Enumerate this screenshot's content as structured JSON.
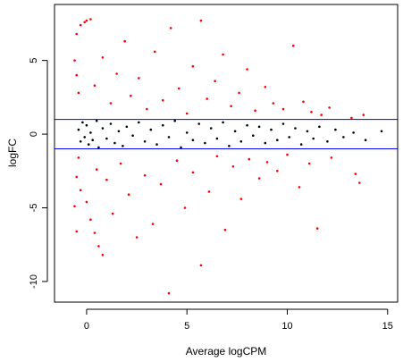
{
  "chart_data": {
    "type": "scatter",
    "title": "",
    "xlabel": "Average logCPM",
    "ylabel": "logFC",
    "xlim": [
      -1.6,
      15.5
    ],
    "ylim": [
      -11.4,
      8.8
    ],
    "xticks": [
      0,
      5,
      10,
      15
    ],
    "yticks": [
      -10,
      -5,
      0,
      5
    ],
    "xtick_labels": [
      "0",
      "5",
      "10",
      "15"
    ],
    "ytick_labels": [
      "-10",
      "-5",
      "0",
      "5"
    ],
    "reference_lines": [
      {
        "orientation": "horizontal",
        "y": 1,
        "color": "#0000ff"
      },
      {
        "orientation": "horizontal",
        "y": -1,
        "color": "#0000ff"
      }
    ],
    "grid": false,
    "legend": "none",
    "series": [
      {
        "color": "#000000",
        "description": "not significant (|logFC| <= 1)",
        "points": [
          [
            -0.4,
            0.3
          ],
          [
            -0.3,
            -0.5
          ],
          [
            -0.2,
            0.8
          ],
          [
            -0.1,
            -0.2
          ],
          [
            0,
            0.6
          ],
          [
            0.1,
            -0.7
          ],
          [
            0.2,
            0.1
          ],
          [
            0.3,
            -0.4
          ],
          [
            0.5,
            0.9
          ],
          [
            0.6,
            -0.9
          ],
          [
            0.8,
            0.4
          ],
          [
            1,
            -0.3
          ],
          [
            1.2,
            0.7
          ],
          [
            1.4,
            -0.6
          ],
          [
            1.6,
            0.2
          ],
          [
            1.8,
            -0.8
          ],
          [
            2,
            0.5
          ],
          [
            2.3,
            -0.1
          ],
          [
            2.6,
            0.8
          ],
          [
            2.9,
            -0.5
          ],
          [
            3.2,
            0.3
          ],
          [
            3.5,
            -0.7
          ],
          [
            3.8,
            0.6
          ],
          [
            4.1,
            -0.2
          ],
          [
            4.4,
            0.9
          ],
          [
            4.7,
            -0.9
          ],
          [
            5,
            0.1
          ],
          [
            5.3,
            -0.4
          ],
          [
            5.6,
            0.7
          ],
          [
            5.9,
            -0.6
          ],
          [
            6.2,
            0.4
          ],
          [
            6.5,
            -0.3
          ],
          [
            6.8,
            0.8
          ],
          [
            7.1,
            -0.8
          ],
          [
            7.4,
            0.2
          ],
          [
            7.7,
            -0.5
          ],
          [
            8,
            0.6
          ],
          [
            8.3,
            -0.1
          ],
          [
            8.6,
            0.5
          ],
          [
            8.9,
            -0.6
          ],
          [
            9.2,
            0.3
          ],
          [
            9.5,
            -0.4
          ],
          [
            9.8,
            0.7
          ],
          [
            10.1,
            -0.2
          ],
          [
            10.4,
            0.4
          ],
          [
            10.7,
            -0.7
          ],
          [
            11,
            0.2
          ],
          [
            11.3,
            -0.3
          ],
          [
            11.6,
            0.5
          ],
          [
            12,
            -0.5
          ],
          [
            12.4,
            0.3
          ],
          [
            12.8,
            -0.2
          ],
          [
            13.3,
            0.1
          ],
          [
            13.9,
            -0.4
          ],
          [
            14.7,
            0.2
          ]
        ]
      },
      {
        "color": "#ff0000",
        "description": "significant (|logFC| > 1)",
        "points": [
          [
            -0.5,
            6.8
          ],
          [
            -0.3,
            7.4
          ],
          [
            -0.1,
            7.6
          ],
          [
            0,
            7.7
          ],
          [
            0.2,
            7.8
          ],
          [
            -0.6,
            5
          ],
          [
            -0.5,
            4
          ],
          [
            -0.4,
            2.8
          ],
          [
            0.4,
            3.3
          ],
          [
            0.8,
            5.2
          ],
          [
            1.2,
            2.1
          ],
          [
            1.5,
            4.1
          ],
          [
            1.9,
            6.3
          ],
          [
            2.2,
            2.6
          ],
          [
            2.6,
            3.8
          ],
          [
            3,
            1.7
          ],
          [
            3.4,
            5.6
          ],
          [
            3.8,
            2.3
          ],
          [
            4.2,
            7.2
          ],
          [
            4.6,
            3.1
          ],
          [
            5,
            1.4
          ],
          [
            5.3,
            4.6
          ],
          [
            5.7,
            7.7
          ],
          [
            6,
            2.4
          ],
          [
            6.4,
            3.6
          ],
          [
            6.8,
            5.4
          ],
          [
            7.2,
            1.9
          ],
          [
            7.6,
            2.8
          ],
          [
            8,
            4.4
          ],
          [
            8.4,
            1.6
          ],
          [
            8.9,
            3.2
          ],
          [
            9.3,
            2.1
          ],
          [
            9.8,
            1.7
          ],
          [
            10.3,
            6
          ],
          [
            10.8,
            2.2
          ],
          [
            11.2,
            1.5
          ],
          [
            11.7,
            1.3
          ],
          [
            12.1,
            1.8
          ],
          [
            13.2,
            1.1
          ],
          [
            13.8,
            1.3
          ],
          [
            -0.4,
            -1.6
          ],
          [
            -0.5,
            -2.9
          ],
          [
            -0.6,
            -4.9
          ],
          [
            -0.5,
            -6.6
          ],
          [
            -0.3,
            -3.8
          ],
          [
            0,
            -4.6
          ],
          [
            0.2,
            -5.8
          ],
          [
            0.4,
            -6.7
          ],
          [
            0.6,
            -7.6
          ],
          [
            0.8,
            -8.2
          ],
          [
            0.5,
            -2.4
          ],
          [
            1,
            -3.1
          ],
          [
            1.3,
            -5.4
          ],
          [
            1.7,
            -2
          ],
          [
            2.1,
            -4.1
          ],
          [
            2.5,
            -7
          ],
          [
            2.9,
            -2.8
          ],
          [
            3.3,
            -6.1
          ],
          [
            3.7,
            -3.4
          ],
          [
            4.1,
            -10.8
          ],
          [
            4.5,
            -1.8
          ],
          [
            4.9,
            -5
          ],
          [
            5.3,
            -2.6
          ],
          [
            5.7,
            -8.9
          ],
          [
            6.1,
            -3.9
          ],
          [
            6.5,
            -1.5
          ],
          [
            6.9,
            -6.5
          ],
          [
            7.3,
            -2.2
          ],
          [
            7.7,
            -4.4
          ],
          [
            8.1,
            -1.7
          ],
          [
            8.6,
            -3
          ],
          [
            9,
            -1.9
          ],
          [
            9.5,
            -2.5
          ],
          [
            10,
            -1.4
          ],
          [
            10.6,
            -3.6
          ],
          [
            11.1,
            -2
          ],
          [
            11.5,
            -6.4
          ],
          [
            12.2,
            -1.6
          ],
          [
            13.4,
            -2.7
          ],
          [
            13.6,
            -3.3
          ]
        ]
      }
    ]
  }
}
